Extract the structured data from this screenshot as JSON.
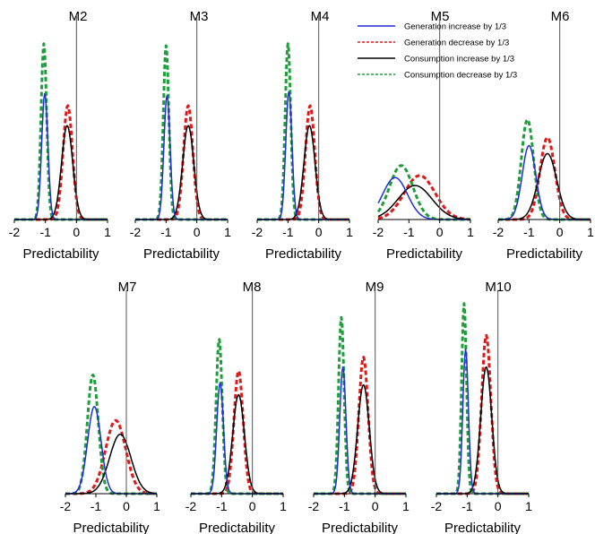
{
  "colors": {
    "gen_increase": "#1f2fd6",
    "gen_decrease": "#e01818",
    "cons_increase": "#000000",
    "cons_decrease": "#1e9e3a",
    "zero_line": "#555555"
  },
  "legend": [
    {
      "key": "gen_increase",
      "label": "Generation increase by 1/3",
      "style": "solid"
    },
    {
      "key": "gen_decrease",
      "label": "Generation decrease by 1/3",
      "style": "dotted"
    },
    {
      "key": "cons_increase",
      "label": "Consumption increase by 1/3",
      "style": "solid"
    },
    {
      "key": "cons_decrease",
      "label": "Consumption decrease by 1/3",
      "style": "dotted"
    }
  ],
  "chart_data": [
    {
      "type": "line",
      "title": "M2",
      "xlabel": "Predictability",
      "xlim": [
        -2,
        1
      ],
      "x_ticks": [
        -2,
        -1,
        0,
        1
      ],
      "y_axis_visible": false,
      "peaks": {
        "gen_increase": {
          "mu": -1.02,
          "sigma": 0.1,
          "height": 0.63
        },
        "gen_decrease": {
          "mu": -0.28,
          "sigma": 0.15,
          "height": 0.57
        },
        "cons_increase": {
          "mu": -0.3,
          "sigma": 0.18,
          "height": 0.47
        },
        "cons_decrease": {
          "mu": -1.05,
          "sigma": 0.09,
          "height": 0.88
        }
      }
    },
    {
      "type": "line",
      "title": "M3",
      "xlabel": "Predictability",
      "xlim": [
        -2,
        1
      ],
      "x_ticks": [
        -2,
        -1,
        0,
        1
      ],
      "y_axis_visible": false,
      "peaks": {
        "gen_increase": {
          "mu": -0.97,
          "sigma": 0.1,
          "height": 0.62
        },
        "gen_decrease": {
          "mu": -0.28,
          "sigma": 0.15,
          "height": 0.57
        },
        "cons_increase": {
          "mu": -0.28,
          "sigma": 0.18,
          "height": 0.47
        },
        "cons_decrease": {
          "mu": -1.0,
          "sigma": 0.09,
          "height": 0.87
        }
      }
    },
    {
      "type": "line",
      "title": "M4",
      "xlabel": "Predictability",
      "xlim": [
        -2,
        1
      ],
      "x_ticks": [
        -2,
        -1,
        0,
        1
      ],
      "y_axis_visible": false,
      "peaks": {
        "gen_increase": {
          "mu": -0.97,
          "sigma": 0.1,
          "height": 0.64
        },
        "gen_decrease": {
          "mu": -0.28,
          "sigma": 0.15,
          "height": 0.57
        },
        "cons_increase": {
          "mu": -0.3,
          "sigma": 0.18,
          "height": 0.47
        },
        "cons_decrease": {
          "mu": -1.0,
          "sigma": 0.09,
          "height": 0.88
        }
      }
    },
    {
      "type": "line",
      "title": "M5",
      "xlabel": "Predictability",
      "xlim": [
        -2,
        1
      ],
      "x_ticks": [
        -2,
        -1,
        0,
        1
      ],
      "y_axis_visible": false,
      "peaks": {
        "gen_increase": {
          "mu": -1.45,
          "sigma": 0.4,
          "height": 0.21
        },
        "gen_decrease": {
          "mu": -0.65,
          "sigma": 0.5,
          "height": 0.22
        },
        "cons_increase": {
          "mu": -0.8,
          "sigma": 0.55,
          "height": 0.17
        },
        "cons_decrease": {
          "mu": -1.25,
          "sigma": 0.38,
          "height": 0.27
        }
      }
    },
    {
      "type": "line",
      "title": "M6",
      "xlabel": "Predictability",
      "xlim": [
        -2,
        1
      ],
      "x_ticks": [
        -2,
        -1,
        0,
        1
      ],
      "y_axis_visible": false,
      "peaks": {
        "gen_increase": {
          "mu": -1.0,
          "sigma": 0.22,
          "height": 0.37
        },
        "gen_decrease": {
          "mu": -0.4,
          "sigma": 0.24,
          "height": 0.41
        },
        "cons_increase": {
          "mu": -0.4,
          "sigma": 0.3,
          "height": 0.33
        },
        "cons_decrease": {
          "mu": -1.05,
          "sigma": 0.2,
          "height": 0.5
        }
      }
    },
    {
      "type": "line",
      "title": "M7",
      "xlabel": "Predictability",
      "xlim": [
        -2,
        1
      ],
      "x_ticks": [
        -2,
        -1,
        0,
        1
      ],
      "y_axis_visible": false,
      "peaks": {
        "gen_increase": {
          "mu": -1.05,
          "sigma": 0.22,
          "height": 0.44
        },
        "gen_decrease": {
          "mu": -0.35,
          "sigma": 0.33,
          "height": 0.37
        },
        "cons_increase": {
          "mu": -0.2,
          "sigma": 0.35,
          "height": 0.3
        },
        "cons_decrease": {
          "mu": -1.1,
          "sigma": 0.18,
          "height": 0.6
        }
      }
    },
    {
      "type": "line",
      "title": "M8",
      "xlabel": "Predictability",
      "xlim": [
        -2,
        1
      ],
      "x_ticks": [
        -2,
        -1,
        0,
        1
      ],
      "y_axis_visible": false,
      "peaks": {
        "gen_increase": {
          "mu": -1.05,
          "sigma": 0.11,
          "height": 0.56
        },
        "gen_decrease": {
          "mu": -0.45,
          "sigma": 0.15,
          "height": 0.62
        },
        "cons_increase": {
          "mu": -0.45,
          "sigma": 0.19,
          "height": 0.5
        },
        "cons_decrease": {
          "mu": -1.08,
          "sigma": 0.1,
          "height": 0.78
        }
      }
    },
    {
      "type": "line",
      "title": "M9",
      "xlabel": "Predictability",
      "xlim": [
        -2,
        1
      ],
      "x_ticks": [
        -2,
        -1,
        0,
        1
      ],
      "y_axis_visible": false,
      "peaks": {
        "gen_increase": {
          "mu": -1.05,
          "sigma": 0.1,
          "height": 0.64
        },
        "gen_decrease": {
          "mu": -0.38,
          "sigma": 0.15,
          "height": 0.69
        },
        "cons_increase": {
          "mu": -0.38,
          "sigma": 0.19,
          "height": 0.55
        },
        "cons_decrease": {
          "mu": -1.1,
          "sigma": 0.09,
          "height": 0.89
        }
      }
    },
    {
      "type": "line",
      "title": "M10",
      "xlabel": "Predictability",
      "xlim": [
        -2,
        1
      ],
      "x_ticks": [
        -2,
        -1,
        0,
        1
      ],
      "y_axis_visible": false,
      "peaks": {
        "gen_increase": {
          "mu": -1.05,
          "sigma": 0.09,
          "height": 0.73
        },
        "gen_decrease": {
          "mu": -0.38,
          "sigma": 0.15,
          "height": 0.8
        },
        "cons_increase": {
          "mu": -0.38,
          "sigma": 0.18,
          "height": 0.64
        },
        "cons_decrease": {
          "mu": -1.1,
          "sigma": 0.08,
          "height": 0.96
        }
      }
    }
  ]
}
